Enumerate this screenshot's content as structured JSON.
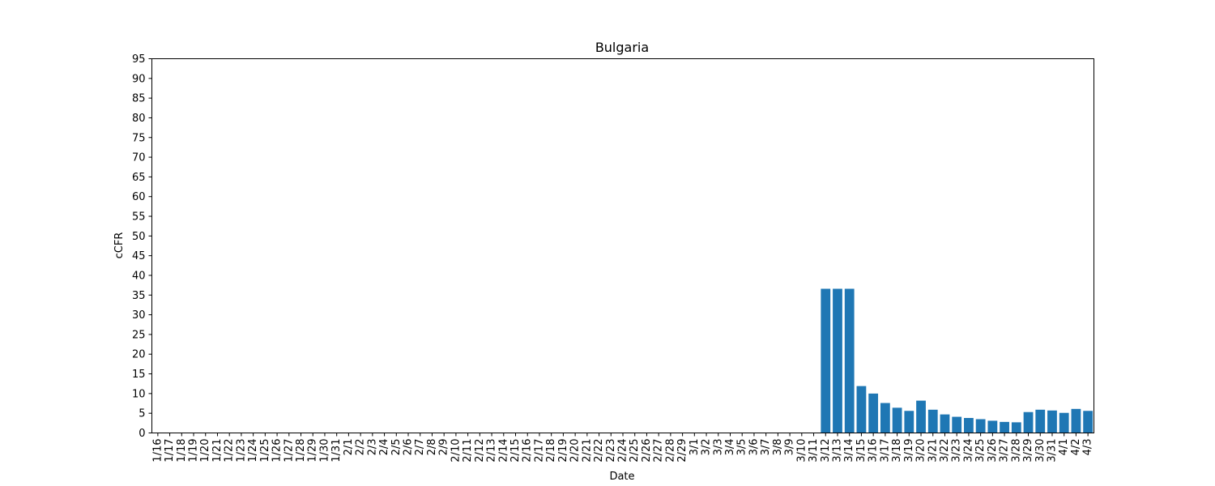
{
  "chart_data": {
    "type": "bar",
    "title": "Bulgaria",
    "xlabel": "Date",
    "ylabel": "cCFR",
    "ylim": [
      0,
      95
    ],
    "yticks": [
      0,
      5,
      10,
      15,
      20,
      25,
      30,
      35,
      40,
      45,
      50,
      55,
      60,
      65,
      70,
      75,
      80,
      85,
      90,
      95
    ],
    "bar_color": "#1f77b4",
    "grid": false,
    "categories": [
      "1/16",
      "1/17",
      "1/18",
      "1/19",
      "1/20",
      "1/21",
      "1/22",
      "1/23",
      "1/24",
      "1/25",
      "1/26",
      "1/27",
      "1/28",
      "1/29",
      "1/30",
      "1/31",
      "2/1",
      "2/2",
      "2/3",
      "2/4",
      "2/5",
      "2/6",
      "2/7",
      "2/8",
      "2/9",
      "2/10",
      "2/11",
      "2/12",
      "2/13",
      "2/14",
      "2/15",
      "2/16",
      "2/17",
      "2/18",
      "2/19",
      "2/20",
      "2/21",
      "2/22",
      "2/23",
      "2/24",
      "2/25",
      "2/26",
      "2/27",
      "2/28",
      "2/29",
      "3/1",
      "3/2",
      "3/3",
      "3/4",
      "3/5",
      "3/6",
      "3/7",
      "3/8",
      "3/9",
      "3/10",
      "3/11",
      "3/12",
      "3/13",
      "3/14",
      "3/15",
      "3/16",
      "3/17",
      "3/18",
      "3/19",
      "3/20",
      "3/21",
      "3/22",
      "3/23",
      "3/24",
      "3/25",
      "3/26",
      "3/27",
      "3/28",
      "3/29",
      "3/30",
      "3/31",
      "4/1",
      "4/2",
      "4/3"
    ],
    "values": [
      0,
      0,
      0,
      0,
      0,
      0,
      0,
      0,
      0,
      0,
      0,
      0,
      0,
      0,
      0,
      0,
      0,
      0,
      0,
      0,
      0,
      0,
      0,
      0,
      0,
      0,
      0,
      0,
      0,
      0,
      0,
      0,
      0,
      0,
      0,
      0,
      0,
      0,
      0,
      0,
      0,
      0,
      0,
      0,
      0,
      0,
      0,
      0,
      0,
      0,
      0,
      0,
      0,
      0,
      0,
      0,
      36.6,
      36.6,
      36.6,
      11.9,
      10.0,
      7.6,
      6.4,
      5.6,
      8.2,
      5.9,
      4.7,
      4.1,
      3.8,
      3.5,
      3.1,
      2.8,
      2.7,
      5.3,
      5.9,
      5.7,
      5.1,
      6.1,
      5.6
    ]
  }
}
